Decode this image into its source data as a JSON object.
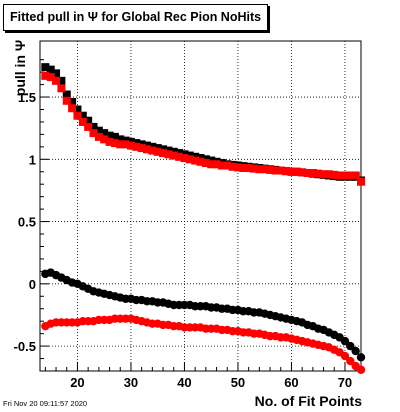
{
  "title": "Fitted pull in Ψ  for Global Rec Pion NoHits",
  "xlabel": "No. of Fit Points",
  "ylabel": "pull in Ψ",
  "timestamp": "Fri Nov 20 09:11:57 2020",
  "chart_data": {
    "type": "scatter",
    "xlim": [
      13,
      73
    ],
    "ylim": [
      -0.7,
      1.95
    ],
    "xticks": [
      20,
      30,
      40,
      50,
      60,
      70
    ],
    "yticks": [
      -0.5,
      0,
      0.5,
      1,
      1.5
    ],
    "ytick_labels": [
      "-0.5",
      "0",
      "0.5",
      "1",
      "1.5"
    ],
    "xtick_labels": [
      "20",
      "30",
      "40",
      "50",
      "60",
      "70"
    ],
    "grid": true,
    "x": [
      14,
      15,
      16,
      17,
      18,
      19,
      20,
      21,
      22,
      23,
      24,
      25,
      26,
      27,
      28,
      29,
      30,
      31,
      32,
      33,
      34,
      35,
      36,
      37,
      38,
      39,
      40,
      41,
      42,
      43,
      44,
      45,
      46,
      47,
      48,
      49,
      50,
      51,
      52,
      53,
      54,
      55,
      56,
      57,
      58,
      59,
      60,
      61,
      62,
      63,
      64,
      65,
      66,
      67,
      68,
      69,
      70,
      71,
      72,
      73
    ],
    "series": [
      {
        "color": "#000000",
        "marker": "square",
        "values": [
          1.74,
          1.72,
          1.69,
          1.63,
          1.52,
          1.46,
          1.4,
          1.35,
          1.31,
          1.26,
          1.23,
          1.21,
          1.19,
          1.18,
          1.16,
          1.15,
          1.14,
          1.13,
          1.12,
          1.11,
          1.1,
          1.09,
          1.08,
          1.07,
          1.06,
          1.05,
          1.04,
          1.03,
          1.02,
          1.01,
          1.0,
          0.99,
          0.98,
          0.97,
          0.96,
          0.955,
          0.95,
          0.945,
          0.94,
          0.935,
          0.93,
          0.925,
          0.92,
          0.915,
          0.91,
          0.905,
          0.9,
          0.9,
          0.895,
          0.89,
          0.885,
          0.88,
          0.875,
          0.87,
          0.865,
          0.86,
          0.86,
          0.86,
          0.86,
          0.83
        ]
      },
      {
        "color": "#000000",
        "marker": "circle",
        "values": [
          0.08,
          0.09,
          0.07,
          0.05,
          0.03,
          0.01,
          0.0,
          -0.02,
          -0.04,
          -0.06,
          -0.07,
          -0.08,
          -0.09,
          -0.1,
          -0.11,
          -0.12,
          -0.12,
          -0.13,
          -0.13,
          -0.14,
          -0.14,
          -0.15,
          -0.15,
          -0.16,
          -0.17,
          -0.17,
          -0.17,
          -0.17,
          -0.18,
          -0.18,
          -0.18,
          -0.19,
          -0.19,
          -0.2,
          -0.2,
          -0.21,
          -0.21,
          -0.22,
          -0.22,
          -0.23,
          -0.23,
          -0.24,
          -0.25,
          -0.26,
          -0.27,
          -0.28,
          -0.29,
          -0.3,
          -0.31,
          -0.33,
          -0.34,
          -0.36,
          -0.37,
          -0.39,
          -0.41,
          -0.43,
          -0.46,
          -0.5,
          -0.54,
          -0.59
        ]
      },
      {
        "color": "#ff0000",
        "marker": "square",
        "values": [
          1.67,
          1.66,
          1.63,
          1.57,
          1.47,
          1.41,
          1.35,
          1.3,
          1.26,
          1.21,
          1.18,
          1.16,
          1.14,
          1.13,
          1.12,
          1.12,
          1.11,
          1.1,
          1.09,
          1.08,
          1.07,
          1.06,
          1.05,
          1.04,
          1.03,
          1.02,
          1.01,
          1.0,
          0.99,
          0.98,
          0.97,
          0.96,
          0.96,
          0.95,
          0.95,
          0.94,
          0.935,
          0.93,
          0.93,
          0.925,
          0.92,
          0.92,
          0.915,
          0.91,
          0.91,
          0.905,
          0.9,
          0.9,
          0.895,
          0.89,
          0.89,
          0.885,
          0.88,
          0.88,
          0.875,
          0.87,
          0.87,
          0.87,
          0.87,
          0.82
        ]
      },
      {
        "color": "#ff0000",
        "marker": "circle",
        "values": [
          -0.34,
          -0.32,
          -0.31,
          -0.31,
          -0.31,
          -0.31,
          -0.31,
          -0.3,
          -0.3,
          -0.3,
          -0.29,
          -0.29,
          -0.29,
          -0.28,
          -0.28,
          -0.28,
          -0.28,
          -0.29,
          -0.3,
          -0.31,
          -0.32,
          -0.32,
          -0.33,
          -0.33,
          -0.34,
          -0.34,
          -0.35,
          -0.35,
          -0.35,
          -0.35,
          -0.36,
          -0.36,
          -0.36,
          -0.37,
          -0.37,
          -0.38,
          -0.38,
          -0.39,
          -0.39,
          -0.4,
          -0.4,
          -0.41,
          -0.42,
          -0.42,
          -0.43,
          -0.43,
          -0.44,
          -0.45,
          -0.46,
          -0.47,
          -0.48,
          -0.49,
          -0.5,
          -0.51,
          -0.53,
          -0.55,
          -0.58,
          -0.62,
          -0.66,
          -0.69
        ]
      }
    ]
  }
}
